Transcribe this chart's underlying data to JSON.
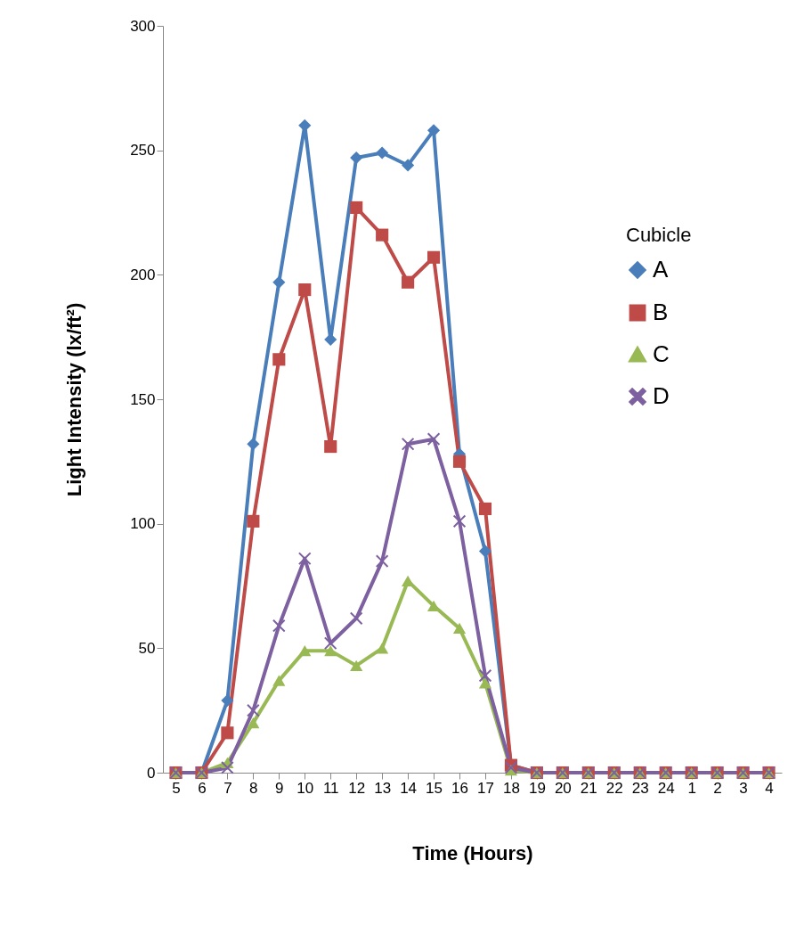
{
  "chart_data": {
    "type": "line",
    "xlabel": "Time (Hours)",
    "ylabel": "Light Intensity (lx/ft²)",
    "legend_title": "Cubicle",
    "categories": [
      "5",
      "6",
      "7",
      "8",
      "9",
      "10",
      "11",
      "12",
      "13",
      "14",
      "15",
      "16",
      "17",
      "18",
      "19",
      "20",
      "21",
      "22",
      "23",
      "24",
      "1",
      "2",
      "3",
      "4"
    ],
    "series": [
      {
        "name": "A",
        "color": "#4a7ebb",
        "marker": "diamond",
        "values": [
          0,
          0,
          29,
          132,
          197,
          260,
          174,
          247,
          249,
          244,
          258,
          128,
          89,
          3,
          0,
          null,
          null,
          null,
          null,
          null,
          null,
          null,
          null,
          null
        ]
      },
      {
        "name": "B",
        "color": "#be4b48",
        "marker": "square",
        "values": [
          0,
          0,
          16,
          101,
          166,
          194,
          131,
          227,
          216,
          197,
          207,
          125,
          106,
          3,
          0,
          0,
          0,
          0,
          0,
          0,
          0,
          0,
          0,
          0
        ]
      },
      {
        "name": "C",
        "color": "#98b954",
        "marker": "triangle",
        "values": [
          0,
          0,
          4,
          20,
          37,
          49,
          49,
          43,
          50,
          77,
          67,
          58,
          36,
          1,
          0,
          0,
          0,
          0,
          0,
          0,
          0,
          0,
          0,
          0
        ]
      },
      {
        "name": "D",
        "color": "#7d60a0",
        "marker": "cross",
        "values": [
          0,
          0,
          2,
          25,
          59,
          86,
          52,
          62,
          85,
          132,
          134,
          101,
          39,
          2,
          0,
          0,
          0,
          0,
          0,
          0,
          0,
          0,
          0,
          0
        ]
      }
    ],
    "ylim": [
      0,
      300
    ],
    "yticks": [
      0,
      50,
      100,
      150,
      200,
      250,
      300
    ],
    "grid": false,
    "legend": "right",
    "line_style": "solid"
  }
}
